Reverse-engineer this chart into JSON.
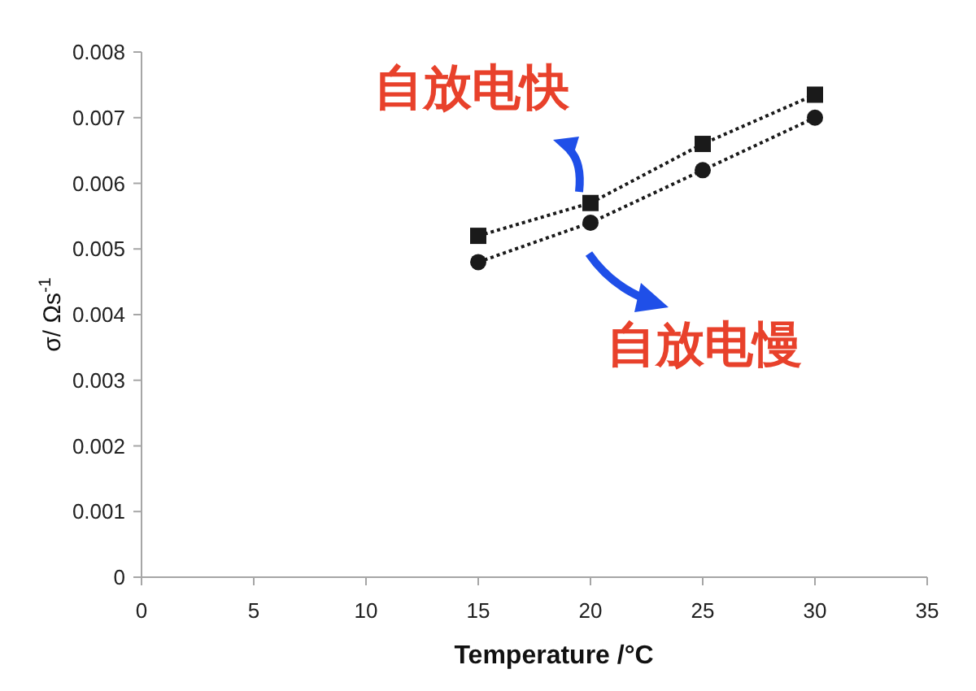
{
  "chart_data": {
    "type": "line",
    "xlabel": "Temperature /°C",
    "ylabel": "σ/ Ωs$^{-1}$",
    "xlim": [
      0,
      35
    ],
    "xticks": [
      0,
      5,
      10,
      15,
      20,
      25,
      30,
      35
    ],
    "ylim": [
      0,
      0.008
    ],
    "yticks": [
      0,
      0.001,
      0.002,
      0.003,
      0.004,
      0.005,
      0.006,
      0.007,
      0.008
    ],
    "x": [
      15,
      20,
      25,
      30
    ],
    "series": [
      {
        "color": "#1a1a1a",
        "marker": "square",
        "line_style": "dotted",
        "values": [
          0.0052,
          0.0057,
          0.0066,
          0.00735
        ]
      },
      {
        "color": "#1a1a1a",
        "marker": "circle",
        "line_style": "dotted",
        "values": [
          0.0048,
          0.0054,
          0.0062,
          0.007
        ]
      }
    ],
    "annotations": [
      "自放电快",
      "自放电慢"
    ],
    "grid": false
  }
}
